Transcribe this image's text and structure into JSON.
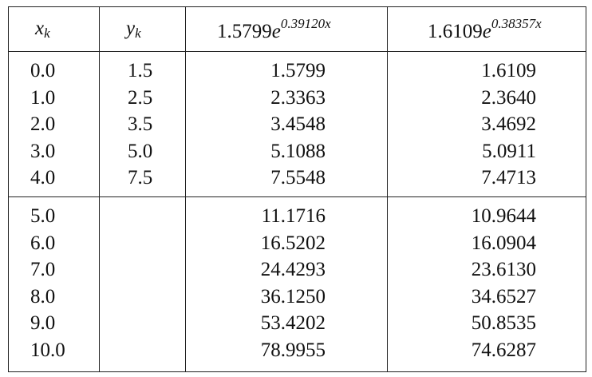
{
  "headers": {
    "x": {
      "base": "x",
      "sub": "k"
    },
    "y": {
      "base": "y",
      "sub": "k"
    },
    "f1": {
      "coef": "1.5799",
      "base": "e",
      "exp": "0.39120x"
    },
    "f2": {
      "coef": "1.6109",
      "base": "e",
      "exp": "0.38357x"
    }
  },
  "rows_top": [
    {
      "x": "0.0",
      "y": "1.5",
      "f1": "1.5799",
      "f2": "1.6109"
    },
    {
      "x": "1.0",
      "y": "2.5",
      "f1": "2.3363",
      "f2": "2.3640"
    },
    {
      "x": "2.0",
      "y": "3.5",
      "f1": "3.4548",
      "f2": "3.4692"
    },
    {
      "x": "3.0",
      "y": "5.0",
      "f1": "5.1088",
      "f2": "5.0911"
    },
    {
      "x": "4.0",
      "y": "7.5",
      "f1": "7.5548",
      "f2": "7.4713"
    }
  ],
  "rows_bottom": [
    {
      "x": "5.0",
      "y": "",
      "f1": "11.1716",
      "f2": "10.9644"
    },
    {
      "x": "6.0",
      "y": "",
      "f1": "16.5202",
      "f2": "16.0904"
    },
    {
      "x": "7.0",
      "y": "",
      "f1": "24.4293",
      "f2": "23.6130"
    },
    {
      "x": "8.0",
      "y": "",
      "f1": "36.1250",
      "f2": "34.6527"
    },
    {
      "x": "9.0",
      "y": "",
      "f1": "53.4202",
      "f2": "50.8535"
    },
    {
      "x": "10.0",
      "y": "",
      "f1": "78.9955",
      "f2": "74.6287"
    }
  ]
}
